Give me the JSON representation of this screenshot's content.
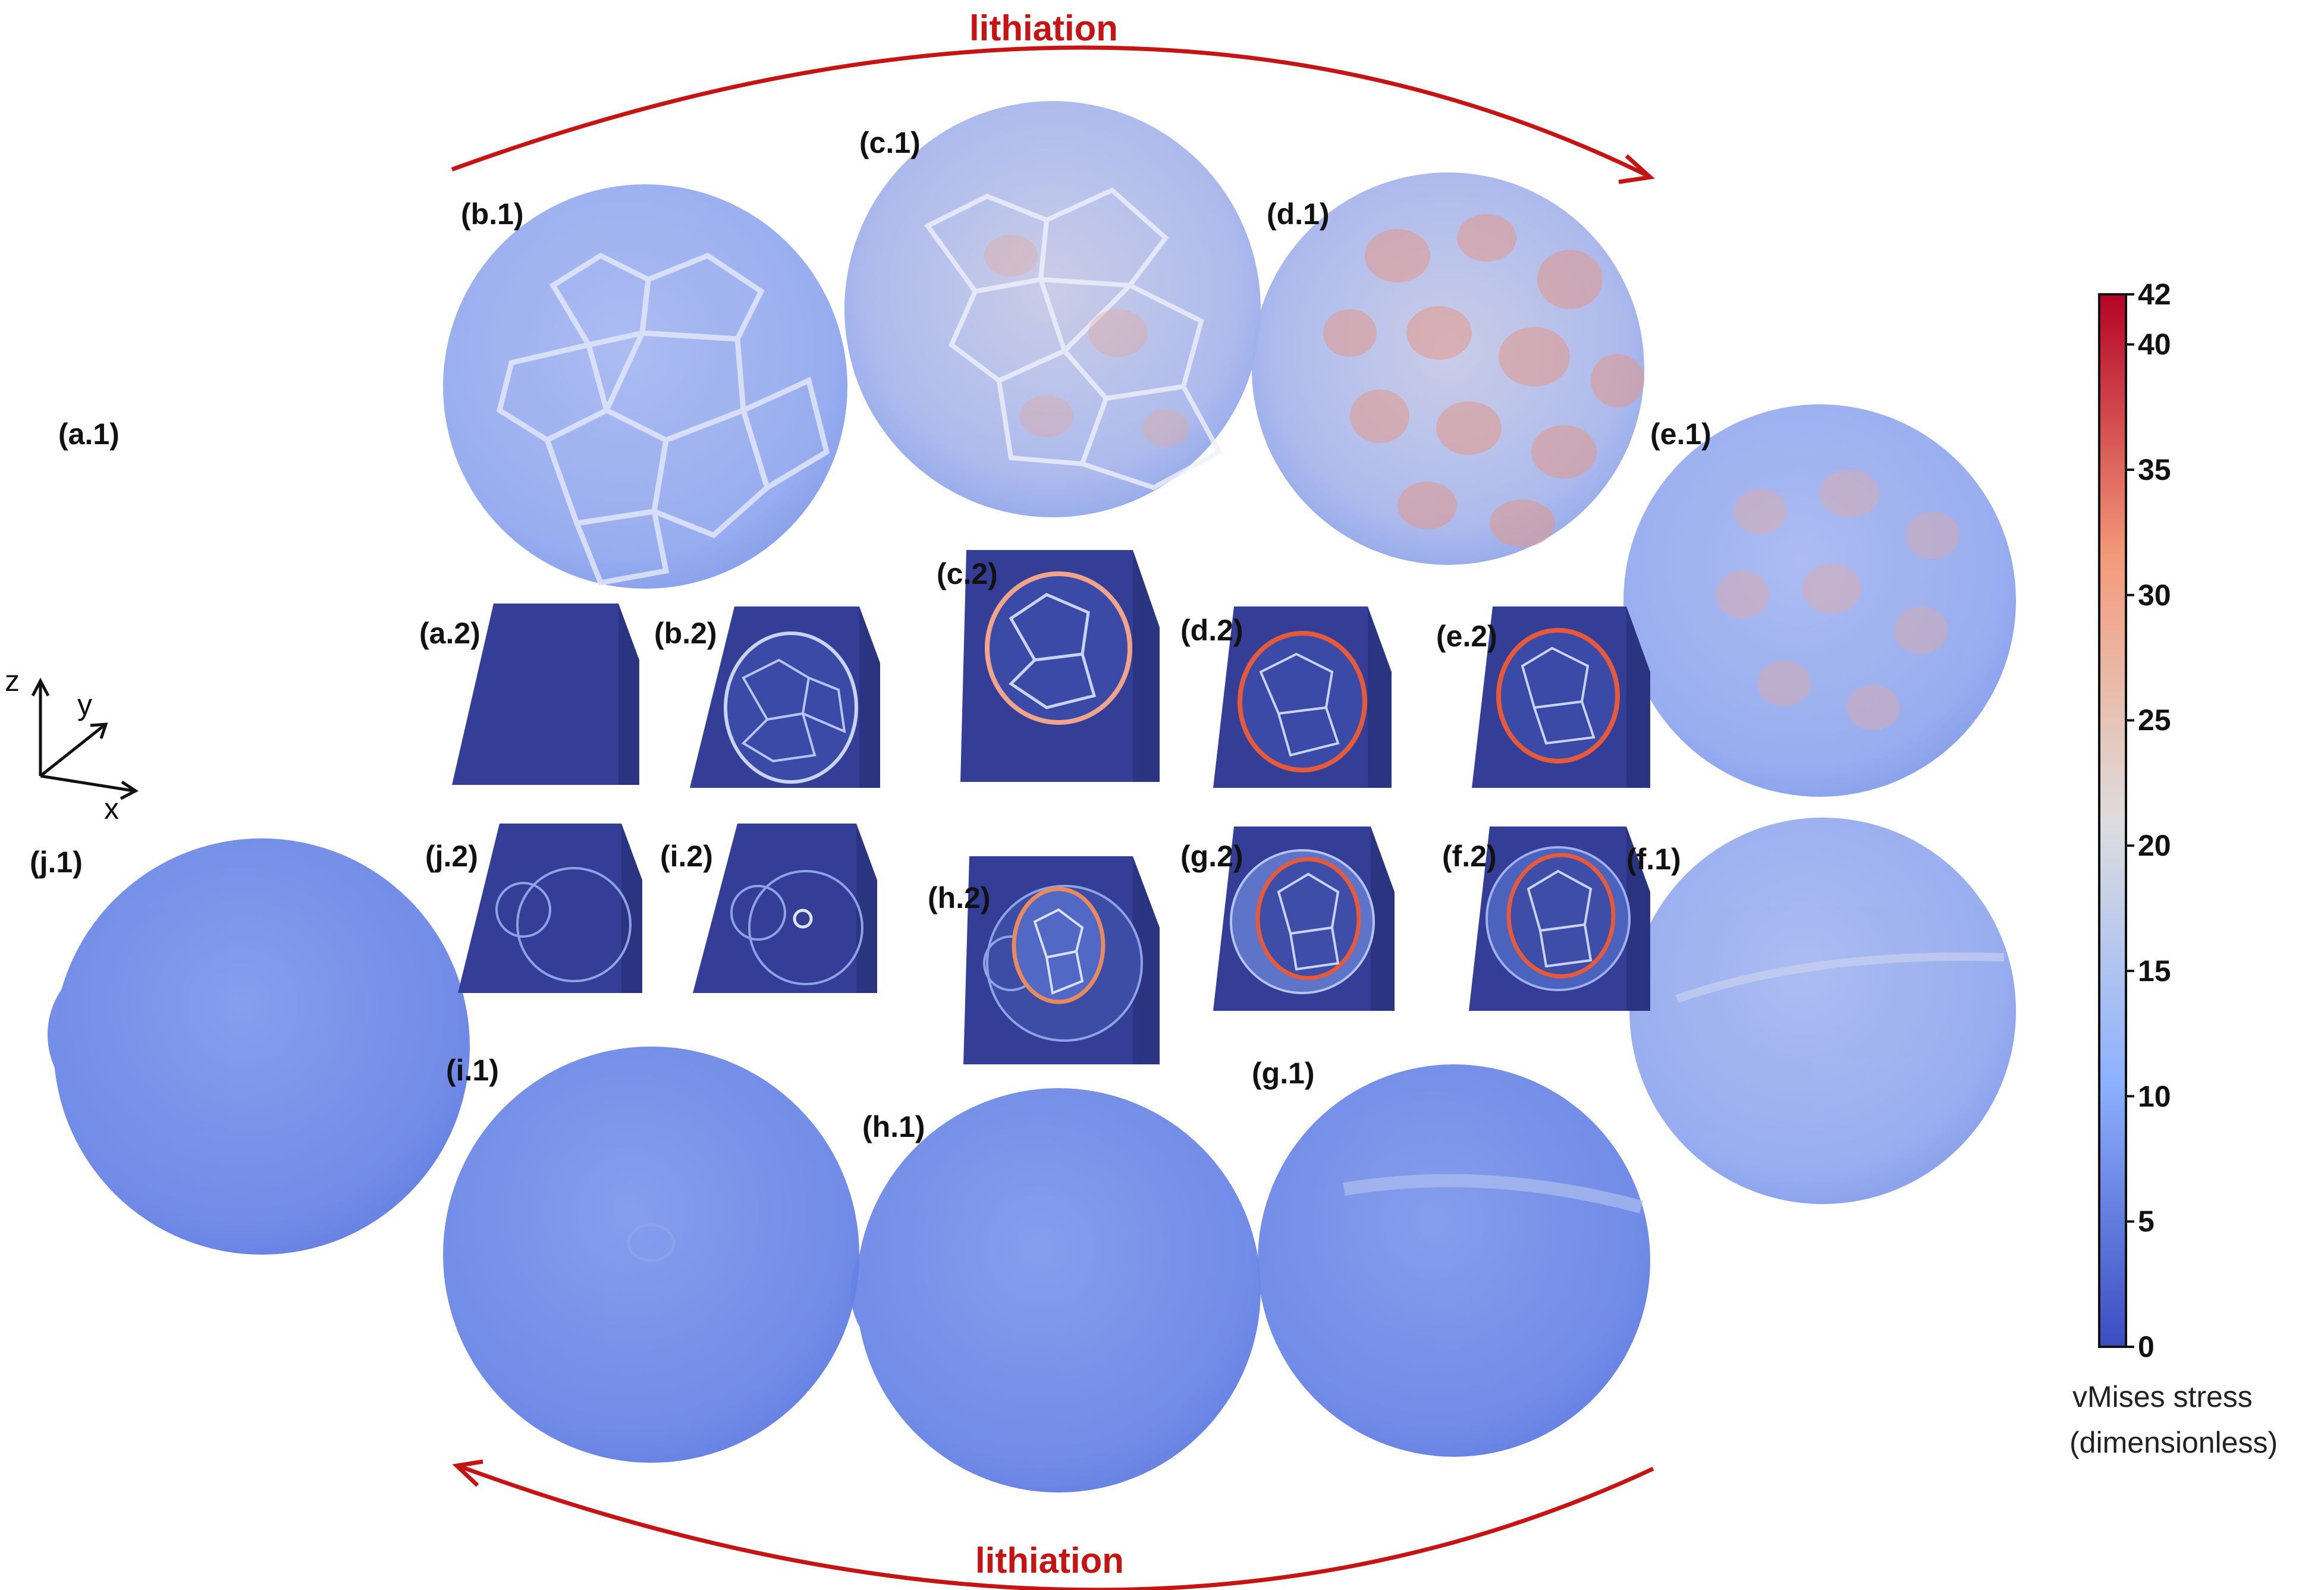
{
  "arrows": {
    "top_label": "lithiation",
    "bottom_label": "lithiation",
    "color": "#c41414"
  },
  "axes_triad": {
    "z": "z",
    "y": "y",
    "x": "x"
  },
  "colorbar": {
    "title_line1": "vMises stress",
    "title_line2": "(dimensionless)",
    "min": 0,
    "max": 42,
    "ticks": [
      "0",
      "5",
      "10",
      "15",
      "20",
      "25",
      "30",
      "35",
      "40",
      "42"
    ],
    "colors": [
      "#3b4cc0",
      "#8db0fe",
      "#dddddd",
      "#f49a7b",
      "#b40426"
    ]
  },
  "panels": {
    "a1": "(a.1)",
    "b1": "(b.1)",
    "c1": "(c.1)",
    "d1": "(d.1)",
    "e1": "(e.1)",
    "f1": "(f.1)",
    "g1": "(g.1)",
    "h1": "(h.1)",
    "i1": "(i.1)",
    "j1": "(j.1)",
    "a2": "(a.2)",
    "b2": "(b.2)",
    "c2": "(c.2)",
    "d2": "(d.2)",
    "e2": "(e.2)",
    "f2": "(f.2)",
    "g2": "(g.2)",
    "h2": "(h.2)",
    "i2": "(i.2)",
    "j2": "(j.2)"
  }
}
